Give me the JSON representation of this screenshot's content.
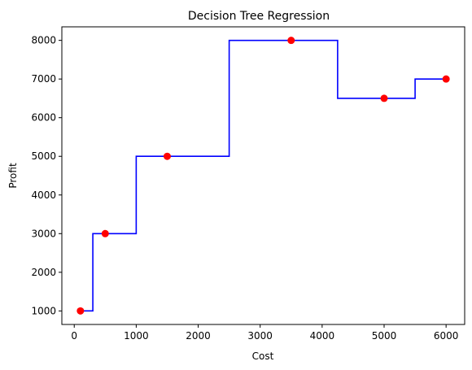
{
  "chart_data": {
    "type": "line",
    "title": "Decision Tree Regression",
    "xlabel": "Cost",
    "ylabel": "Profit",
    "xlim": [
      -200,
      6300
    ],
    "ylim": [
      650,
      8350
    ],
    "x_ticks": [
      0,
      1000,
      2000,
      3000,
      4000,
      5000,
      6000
    ],
    "y_ticks": [
      1000,
      2000,
      3000,
      4000,
      5000,
      6000,
      7000,
      8000
    ],
    "grid": false,
    "legend": "none",
    "series": [
      {
        "type": "scatter",
        "color": "#ff0000",
        "x": [
          100,
          500,
          1500,
          3500,
          5000,
          6000
        ],
        "y": [
          1000,
          3000,
          5000,
          8000,
          6500,
          7000
        ]
      },
      {
        "type": "step",
        "color": "#0000ff",
        "x": [
          100,
          300,
          300,
          1000,
          1000,
          2500,
          2500,
          4250,
          4250,
          5500,
          5500,
          6000
        ],
        "y": [
          1000,
          1000,
          3000,
          3000,
          5000,
          5000,
          8000,
          8000,
          6500,
          6500,
          7000,
          7000
        ]
      }
    ]
  }
}
